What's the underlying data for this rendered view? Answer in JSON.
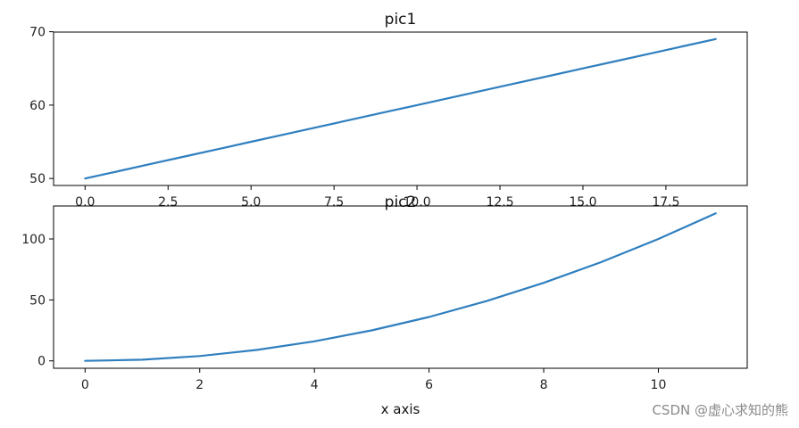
{
  "chart_data": [
    {
      "type": "line",
      "title": "pic1",
      "xlabel": "",
      "ylabel": "",
      "xlim": [
        -0.95,
        19.95
      ],
      "ylim": [
        49.05,
        69.95
      ],
      "xticks": [
        "0.0",
        "2.5",
        "5.0",
        "7.5",
        "10.0",
        "12.5",
        "15.0",
        "17.5"
      ],
      "yticks": [
        "50",
        "60",
        "70"
      ],
      "series": [
        {
          "x": [
            0,
            1,
            2,
            3,
            4,
            5,
            6,
            7,
            8,
            9,
            10,
            11,
            12,
            13,
            14,
            15,
            16,
            17,
            18,
            19
          ],
          "y": [
            50,
            51,
            52,
            53,
            54,
            55,
            56,
            57,
            58,
            59,
            60,
            61,
            62,
            63,
            64,
            65,
            66,
            67,
            68,
            69
          ]
        }
      ],
      "grid": false
    },
    {
      "type": "line",
      "title": "pic2",
      "xlabel": "x axis",
      "ylabel": "",
      "xlim": [
        -0.55,
        11.55
      ],
      "ylim": [
        -6.05,
        127.05
      ],
      "xticks": [
        "0",
        "2",
        "4",
        "6",
        "8",
        "10"
      ],
      "yticks": [
        "0",
        "50",
        "100"
      ],
      "series": [
        {
          "x": [
            0,
            1,
            2,
            3,
            4,
            5,
            6,
            7,
            8,
            9,
            10,
            11
          ],
          "y": [
            0,
            1,
            4,
            9,
            16,
            25,
            36,
            49,
            64,
            81,
            100,
            121
          ]
        }
      ],
      "grid": false
    }
  ],
  "watermark": "CSDN @虚心求知的熊",
  "colors": {
    "series": "#2f7fbf"
  }
}
